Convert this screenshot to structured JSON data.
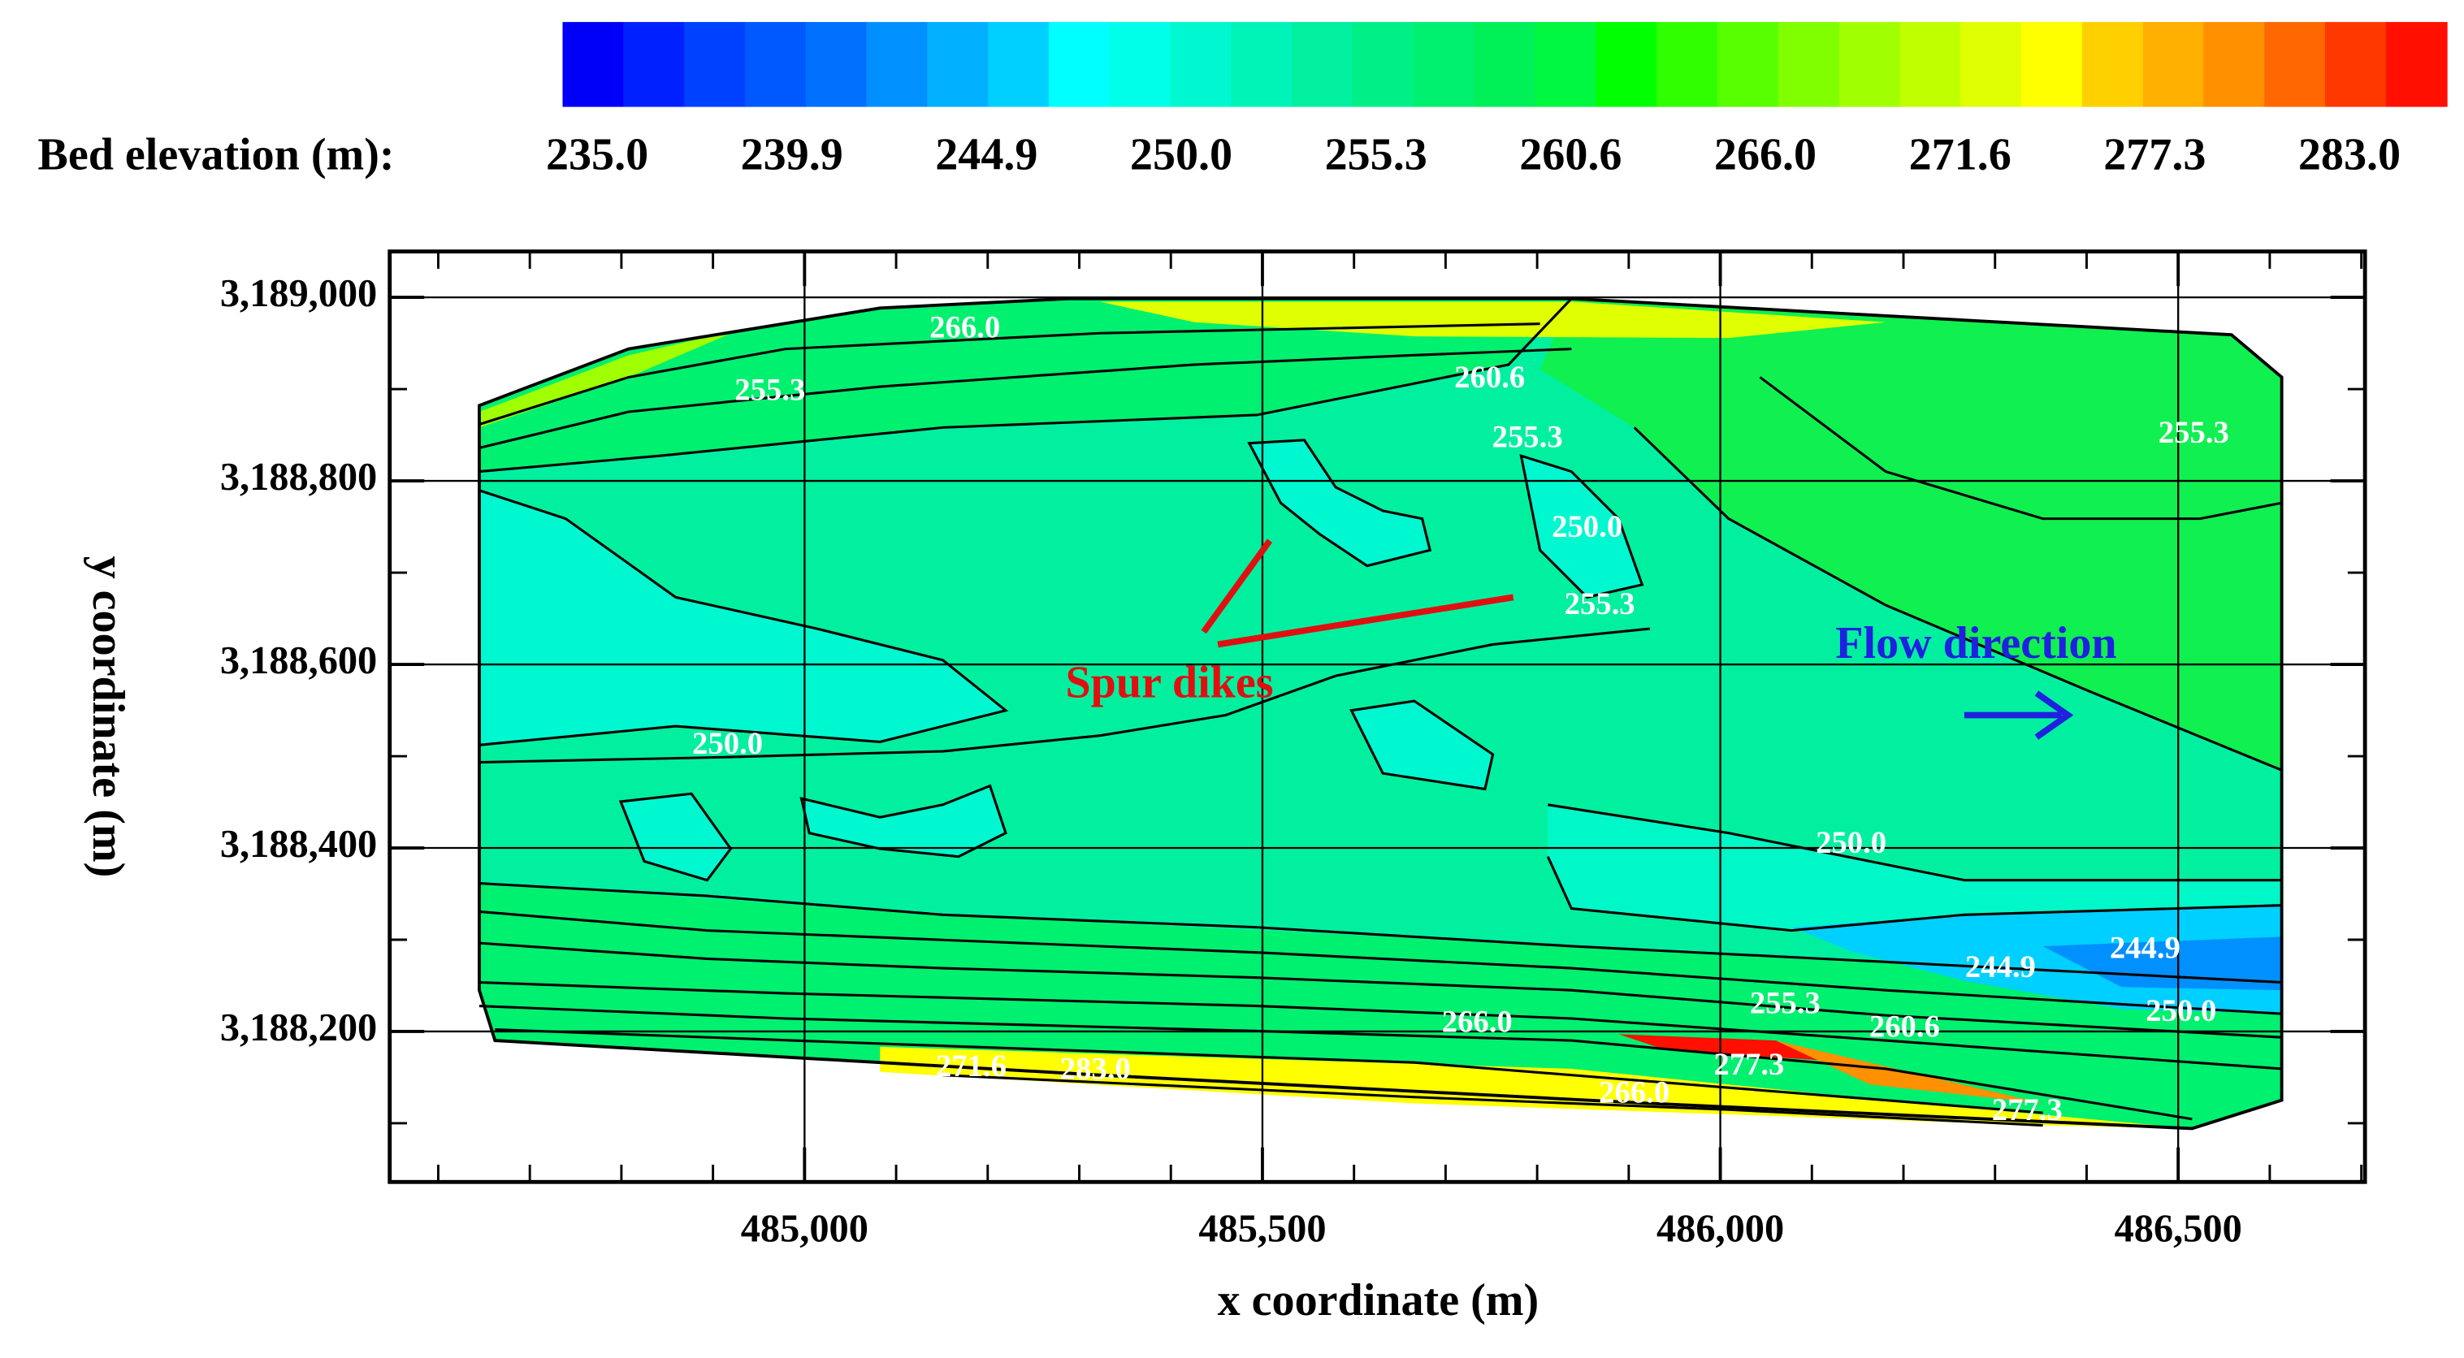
{
  "chart_data": {
    "type": "contour",
    "colorbar_label": "Bed elevation (m):",
    "colorbar_colors": [
      "#0000f8",
      "#0020ff",
      "#0040ff",
      "#0058ff",
      "#0070ff",
      "#0090ff",
      "#00b0ff",
      "#00d0ff",
      "#00ffff",
      "#00ffe8",
      "#00f8d0",
      "#00f4b8",
      "#00f0a0",
      "#00f088",
      "#00f070",
      "#00f058",
      "#00f840",
      "#00ff00",
      "#30ff00",
      "#58ff00",
      "#80ff00",
      "#a0ff00",
      "#c0ff00",
      "#e0ff00",
      "#ffff00",
      "#ffd000",
      "#ffb000",
      "#ff9000",
      "#ff6800",
      "#ff3800",
      "#ff1000"
    ],
    "colorbar_levels": [
      {
        "value": 235,
        "label": "235.0"
      },
      {
        "value": 239.9,
        "label": "239.9"
      },
      {
        "value": 244.9,
        "label": "244.9"
      },
      {
        "value": 250,
        "label": "250.0"
      },
      {
        "value": 255.3,
        "label": "255.3"
      },
      {
        "value": 260.6,
        "label": "260.6"
      },
      {
        "value": 266,
        "label": "266.0"
      },
      {
        "value": 271.6,
        "label": "271.6"
      },
      {
        "value": 277.3,
        "label": "277.3"
      },
      {
        "value": 283,
        "label": "283.0"
      }
    ],
    "xlabel": "x coordinate (m)",
    "ylabel": "y coordinate (m)",
    "xlim": [
      484547,
      486704
    ],
    "ylim": [
      3188036,
      3189050
    ],
    "xticks": [
      {
        "value": 485000,
        "label": "485,000"
      },
      {
        "value": 485500,
        "label": "485,500"
      },
      {
        "value": 486000,
        "label": "486,000"
      },
      {
        "value": 486500,
        "label": "486,500"
      }
    ],
    "yticks": [
      {
        "value": 3188200,
        "label": "3,188,200"
      },
      {
        "value": 3188400,
        "label": "3,188,400"
      },
      {
        "value": 3188600,
        "label": "3,188,600"
      },
      {
        "value": 3188800,
        "label": "3,188,800"
      },
      {
        "value": 3189000,
        "label": "3,189,000"
      }
    ],
    "xminorticks": [
      484600,
      484700,
      484800,
      484900,
      485100,
      485200,
      485300,
      485400,
      485600,
      485700,
      485800,
      485900,
      486100,
      486200,
      486300,
      486400,
      486600,
      486700
    ],
    "yminorticks": [
      3188100,
      3188300,
      3188500,
      3188700,
      3188900
    ],
    "grid": true,
    "contour_labels": [
      "266.0",
      "255.3",
      "260.6",
      "255.3",
      "255.3",
      "250.0",
      "255.3",
      "250.0",
      "250.0",
      "244.9",
      "244.9",
      "250.0",
      "255.3",
      "266.0",
      "260.6",
      "277.3",
      "277.3",
      "266.0",
      "271.6",
      "283.0"
    ],
    "annotations": [
      "Spur dikes",
      "Flow direction"
    ]
  }
}
